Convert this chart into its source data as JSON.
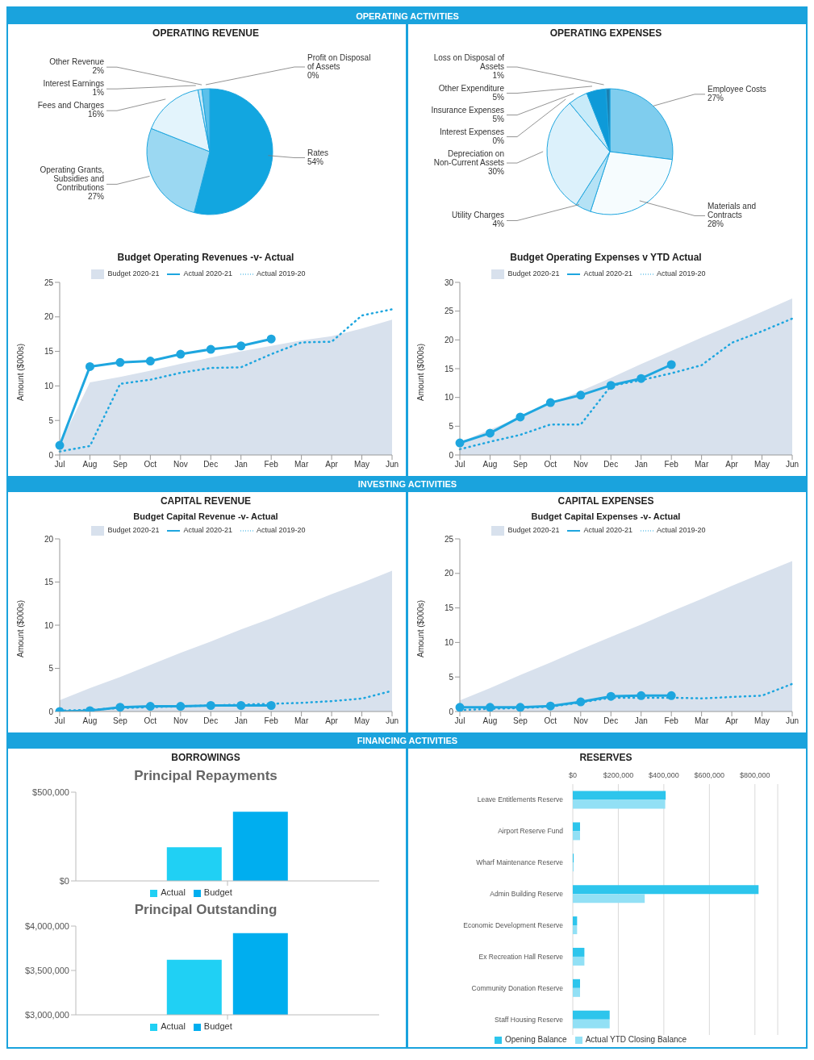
{
  "chart_data": [
    {
      "type": "pie",
      "title": "OPERATING REVENUE",
      "annotations": [
        "OPERATING ACTIVITIES"
      ],
      "categories": [
        "Profit on Disposal of Assets",
        "Rates",
        "Operating Grants, Subsidies and Contributions",
        "Fees and Charges",
        "Interest Earnings",
        "Other Revenue"
      ],
      "values": [
        0,
        54,
        27,
        16,
        1,
        2
      ],
      "value_labels": [
        "0%",
        "54%",
        "27%",
        "16%",
        "1%",
        "2%"
      ],
      "colors": [
        "#0b86bd",
        "#12a6e0",
        "#9bd8f2",
        "#e3f4fc",
        "#c3e7f7",
        "#5cc0ea"
      ]
    },
    {
      "type": "pie",
      "title": "OPERATING EXPENSES",
      "categories": [
        "Employee Costs",
        "Materials and Contracts",
        "Utility Charges",
        "Depreciation on Non-Current Assets",
        "Interest Expenses",
        "Insurance Expenses",
        "Other Expenditure",
        "Loss on Disposal of Assets"
      ],
      "values": [
        27,
        28,
        4,
        30,
        0,
        5,
        5,
        1
      ],
      "value_labels": [
        "27%",
        "28%",
        "4%",
        "30%",
        "0%",
        "5%",
        "5%",
        "1%"
      ],
      "colors": [
        "#7fcdee",
        "#f6fcfe",
        "#b5e2f5",
        "#dcf1fb",
        "#0d9ad6",
        "#c8ebf9",
        "#0e9ad8",
        "#1b7fb0"
      ]
    },
    {
      "type": "line",
      "title": "Budget Operating Revenues -v- Actual",
      "ylabel": "Amount ($000s)",
      "categories": [
        "Jul",
        "Aug",
        "Sep",
        "Oct",
        "Nov",
        "Dec",
        "Jan",
        "Feb",
        "Mar",
        "Apr",
        "May",
        "Jun"
      ],
      "ylim": [
        0,
        25
      ],
      "yticks": [
        0,
        5,
        10,
        15,
        20,
        25
      ],
      "legend": "top",
      "series": [
        {
          "name": "Budget 2020-21",
          "type": "area",
          "color": "#d8e1ed",
          "values": [
            1.5,
            10.5,
            11.3,
            12.2,
            13.2,
            14.1,
            15,
            15.8,
            16.6,
            17.2,
            18.3,
            19.6
          ]
        },
        {
          "name": "Actual 2020-21",
          "type": "line",
          "color": "#1ea6df",
          "marker": "circle",
          "line_style": "solid",
          "values": [
            1.4,
            12.8,
            13.4,
            13.6,
            14.6,
            15.3,
            15.8,
            16.8,
            null,
            null,
            null,
            null
          ]
        },
        {
          "name": "Actual 2019-20",
          "type": "line",
          "color": "#1ea6df",
          "marker": "none",
          "line_style": "dotted",
          "values": [
            0.5,
            1.3,
            10.3,
            10.9,
            11.9,
            12.6,
            12.7,
            14.6,
            16.3,
            16.4,
            20.2,
            21.1
          ]
        }
      ]
    },
    {
      "type": "line",
      "title": "Budget Operating Expenses v YTD Actual",
      "ylabel": "Amount ($000s)",
      "categories": [
        "Jul",
        "Aug",
        "Sep",
        "Oct",
        "Nov",
        "Dec",
        "Jan",
        "Feb",
        "Mar",
        "Apr",
        "May",
        "Jun"
      ],
      "ylim": [
        0,
        30
      ],
      "yticks": [
        0,
        5,
        10,
        15,
        20,
        25,
        30
      ],
      "legend": "top",
      "series": [
        {
          "name": "Budget 2020-21",
          "type": "area",
          "color": "#d8e1ed",
          "values": [
            2.2,
            4.4,
            6.6,
            8.9,
            11.1,
            13.4,
            15.8,
            18.1,
            20.4,
            22.6,
            24.9,
            27.2
          ]
        },
        {
          "name": "Actual 2020-21",
          "type": "line",
          "color": "#1ea6df",
          "marker": "circle",
          "line_style": "solid",
          "values": [
            2.1,
            3.8,
            6.6,
            9.1,
            10.4,
            12.1,
            13.3,
            15.7,
            null,
            null,
            null,
            null
          ]
        },
        {
          "name": "Actual 2019-20",
          "type": "line",
          "color": "#1ea6df",
          "marker": "none",
          "line_style": "dotted",
          "values": [
            1.0,
            2.3,
            3.5,
            5.3,
            5.3,
            12.0,
            13.0,
            14.2,
            15.6,
            19.5,
            21.5,
            23.7
          ]
        }
      ]
    },
    {
      "type": "line",
      "title": "CAPITAL REVENUE",
      "subtitle": "Budget Capital Revenue -v- Actual",
      "annotations": [
        "INVESTING ACTIVITIES"
      ],
      "ylabel": "Amount ($000s)",
      "categories": [
        "Jul",
        "Aug",
        "Sep",
        "Oct",
        "Nov",
        "Dec",
        "Jan",
        "Feb",
        "Mar",
        "Apr",
        "May",
        "Jun"
      ],
      "ylim": [
        0,
        20
      ],
      "yticks": [
        0,
        5,
        10,
        15,
        20
      ],
      "legend": "top",
      "series": [
        {
          "name": "Budget 2020-21",
          "type": "area",
          "color": "#d8e1ed",
          "values": [
            1.3,
            2.7,
            4.0,
            5.4,
            6.8,
            8.1,
            9.5,
            10.8,
            12.2,
            13.6,
            14.9,
            16.3
          ]
        },
        {
          "name": "Actual 2020-21",
          "type": "line",
          "color": "#1ea6df",
          "marker": "circle",
          "line_style": "solid",
          "values": [
            0,
            0.1,
            0.5,
            0.6,
            0.6,
            0.7,
            0.7,
            0.7,
            null,
            null,
            null,
            null
          ]
        },
        {
          "name": "Actual 2019-20",
          "type": "line",
          "color": "#1ea6df",
          "marker": "none",
          "line_style": "dotted",
          "values": [
            0.1,
            0.2,
            0.4,
            0.5,
            0.6,
            0.7,
            0.8,
            0.9,
            1.0,
            1.2,
            1.5,
            2.4
          ]
        }
      ]
    },
    {
      "type": "line",
      "title": "CAPITAL EXPENSES",
      "subtitle": "Budget Capital Expenses -v- Actual",
      "ylabel": "Amount ($000s)",
      "categories": [
        "Jul",
        "Aug",
        "Sep",
        "Oct",
        "Nov",
        "Dec",
        "Jan",
        "Feb",
        "Mar",
        "Apr",
        "May",
        "Jun"
      ],
      "ylim": [
        0,
        25
      ],
      "yticks": [
        0,
        5,
        10,
        15,
        20,
        25
      ],
      "legend": "top",
      "series": [
        {
          "name": "Budget 2020-21",
          "type": "area",
          "color": "#d8e1ed",
          "values": [
            1.6,
            3.4,
            5.3,
            7.1,
            9.0,
            10.8,
            12.6,
            14.5,
            16.3,
            18.2,
            20.0,
            21.8
          ]
        },
        {
          "name": "Actual 2020-21",
          "type": "line",
          "color": "#1ea6df",
          "marker": "circle",
          "line_style": "solid",
          "values": [
            0.6,
            0.6,
            0.6,
            0.8,
            1.4,
            2.2,
            2.3,
            2.3,
            null,
            null,
            null,
            null
          ]
        },
        {
          "name": "Actual 2019-20",
          "type": "line",
          "color": "#1ea6df",
          "marker": "none",
          "line_style": "dotted",
          "values": [
            0.2,
            0.4,
            0.5,
            0.7,
            1.3,
            2.0,
            2.0,
            2.0,
            1.9,
            2.1,
            2.3,
            4.0
          ]
        }
      ]
    },
    {
      "type": "bar",
      "title": "BORROWINGS",
      "subtitle": "Principal Repayments",
      "annotations": [
        "FINANCING ACTIVITIES"
      ],
      "categories": [
        null
      ],
      "ylim": [
        0,
        500000
      ],
      "yticks": [
        {
          "value": 0,
          "label": "$0"
        },
        {
          "value": 500000,
          "label": "$500,000"
        }
      ],
      "legend": "bottom",
      "series": [
        {
          "name": "Actual",
          "color": "#20d0f4",
          "values": [
            190000
          ]
        },
        {
          "name": "Budget",
          "color": "#00aeef",
          "values": [
            390000
          ]
        }
      ]
    },
    {
      "type": "bar",
      "title": "Principal Outstanding",
      "categories": [
        null
      ],
      "ylim": [
        3000000,
        4000000
      ],
      "yticks": [
        {
          "value": 3000000,
          "label": "$3,000,000"
        },
        {
          "value": 3500000,
          "label": "$3,500,000"
        },
        {
          "value": 4000000,
          "label": "$4,000,000"
        }
      ],
      "legend": "bottom",
      "series": [
        {
          "name": "Actual",
          "color": "#20d0f4",
          "values": [
            3620000
          ]
        },
        {
          "name": "Budget",
          "color": "#00aeef",
          "values": [
            3920000
          ]
        }
      ]
    },
    {
      "type": "bar",
      "orientation": "horizontal",
      "title": "RESERVES",
      "categories": [
        "Leave Entitlements Reserve",
        "Airport Reserve Fund",
        "Wharf Maintenance Reserve",
        "Admin Building Reserve",
        "Economic Development Reserve",
        "Ex Recreation Hall Reserve",
        "Community Donation Reserve",
        "Staff Housing Reserve"
      ],
      "xlim": [
        0,
        900000
      ],
      "xticks": [
        {
          "value": 0,
          "label": "$0"
        },
        {
          "value": 200000,
          "label": "$200,000"
        },
        {
          "value": 400000,
          "label": "$400,000"
        },
        {
          "value": 600000,
          "label": "$600,000"
        },
        {
          "value": 800000,
          "label": "$800,000"
        }
      ],
      "grid": "x",
      "legend": "bottom",
      "series": [
        {
          "name": "Opening Balance",
          "color": "#2dc5ec",
          "values": [
            408000,
            32000,
            4000,
            816000,
            19000,
            51000,
            32000,
            162000
          ]
        },
        {
          "name": "Actual YTD Closing Balance",
          "color": "#92e0f5",
          "values": [
            406000,
            32000,
            4000,
            316000,
            19000,
            51000,
            32000,
            162000
          ]
        }
      ]
    }
  ]
}
